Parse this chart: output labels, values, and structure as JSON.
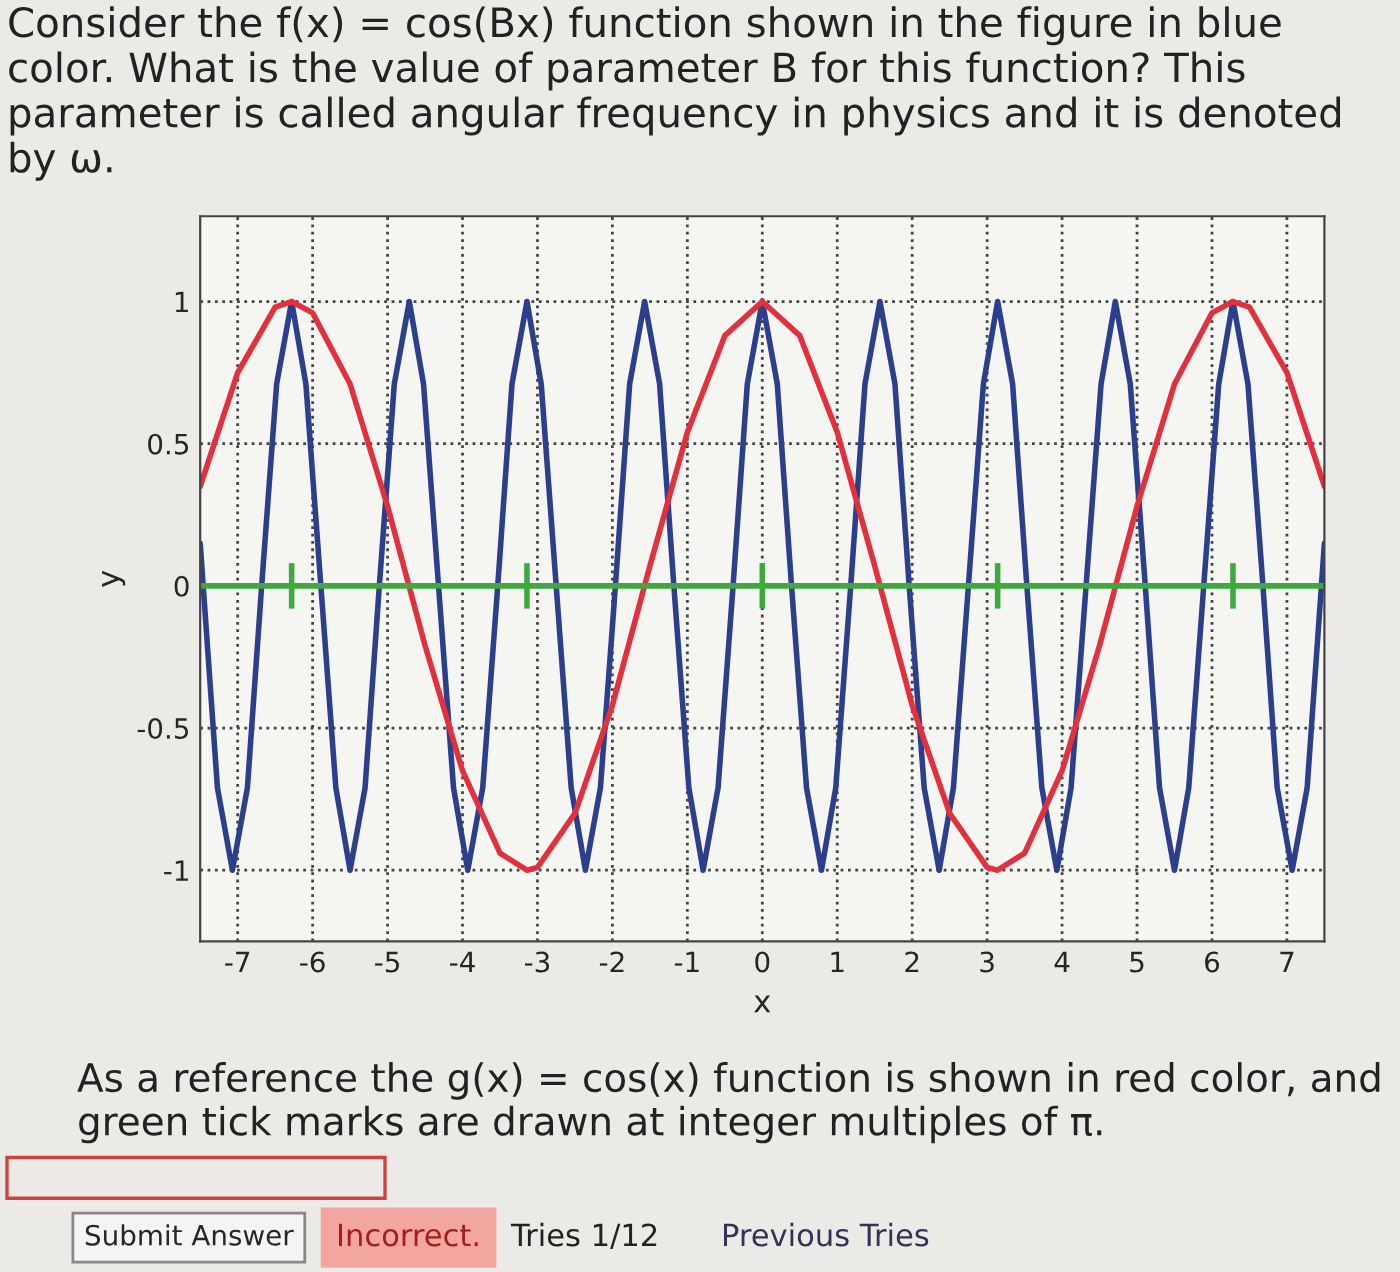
{
  "chart_data": {
    "type": "line",
    "title": "Consider the f(x) = cos(Bx) function shown in the figure in blue color. What is the value of parameter B for this function? This parameter is called angular frequency in physics and it is denoted by ω.",
    "xlabel": "x",
    "ylabel": "y",
    "xlim": [
      -7.5,
      7.5
    ],
    "ylim": [
      -1.25,
      1.3
    ],
    "xticks": [
      -7,
      -6,
      -5,
      -4,
      -3,
      -2,
      -1,
      0,
      1,
      2,
      3,
      4,
      5,
      6,
      7
    ],
    "yticks": [
      -1,
      -0.5,
      0,
      0.5,
      1
    ],
    "grid": true,
    "marker": "none",
    "line_style": "solid",
    "series": [
      {
        "color": "#2b3f8c",
        "x": [
          -7.5,
          -7.46,
          -7.27,
          -7.07,
          -6.87,
          -6.68,
          -6.48,
          -6.28,
          -6.09,
          -5.89,
          -5.69,
          -5.5,
          -5.3,
          -5.11,
          -4.91,
          -4.71,
          -4.52,
          -4.32,
          -4.12,
          -3.93,
          -3.73,
          -3.53,
          -3.34,
          -3.14,
          -2.95,
          -2.75,
          -2.55,
          -2.36,
          -2.16,
          -1.96,
          -1.77,
          -1.57,
          -1.37,
          -1.18,
          -0.98,
          -0.79,
          -0.59,
          -0.39,
          -0.2,
          0,
          0.2,
          0.39,
          0.59,
          0.79,
          0.98,
          1.18,
          1.37,
          1.57,
          1.77,
          1.96,
          2.16,
          2.36,
          2.55,
          2.75,
          2.95,
          3.14,
          3.34,
          3.53,
          3.73,
          3.93,
          4.12,
          4.32,
          4.52,
          4.71,
          4.91,
          5.11,
          5.3,
          5.5,
          5.69,
          5.89,
          6.09,
          6.28,
          6.48,
          6.68,
          6.87,
          7.07,
          7.27,
          7.46,
          7.5
        ],
        "values": [
          0.15,
          0,
          -0.71,
          -1,
          -0.71,
          0,
          0.71,
          1,
          0.71,
          0,
          -0.71,
          -1,
          -0.71,
          0,
          0.71,
          1,
          0.71,
          0,
          -0.71,
          -1,
          -0.71,
          0,
          0.71,
          1,
          0.71,
          0,
          -0.71,
          -1,
          -0.71,
          0,
          0.71,
          1,
          0.71,
          0,
          -0.71,
          -1,
          -0.71,
          0,
          0.71,
          1,
          0.71,
          0,
          -0.71,
          -1,
          -0.71,
          0,
          0.71,
          1,
          0.71,
          0,
          -0.71,
          -1,
          -0.71,
          0,
          0.71,
          1,
          0.71,
          0,
          -0.71,
          -1,
          -0.71,
          0,
          0.71,
          1,
          0.71,
          0,
          -0.71,
          -1,
          -0.71,
          0,
          0.71,
          1,
          0.71,
          0,
          -0.71,
          -1,
          -0.71,
          0,
          0.15
        ]
      },
      {
        "color": "#e2303c",
        "x": [
          -7.5,
          -7,
          -6.5,
          -6.28,
          -6,
          -5.5,
          -5,
          -4.5,
          -4,
          -3.5,
          -3.14,
          -3,
          -2.5,
          -2,
          -1.5,
          -1,
          -0.5,
          0,
          0.5,
          1,
          1.5,
          2,
          2.5,
          3,
          3.14,
          3.5,
          4,
          4.5,
          5,
          5.5,
          6,
          6.28,
          6.5,
          7,
          7.5
        ],
        "values": [
          0.35,
          0.75,
          0.98,
          1,
          0.96,
          0.71,
          0.28,
          -0.21,
          -0.65,
          -0.94,
          -1,
          -0.99,
          -0.8,
          -0.42,
          0.07,
          0.54,
          0.88,
          1,
          0.88,
          0.54,
          0.07,
          -0.42,
          -0.8,
          -0.99,
          -1,
          -0.94,
          -0.65,
          -0.21,
          0.28,
          0.71,
          0.96,
          1,
          0.98,
          0.75,
          0.35
        ]
      },
      {
        "color": "#3fa83f",
        "x": [
          -7.5,
          -6.28,
          -3.14,
          0,
          3.14,
          6.28,
          7.5
        ],
        "values": [
          0,
          0,
          0,
          0,
          0,
          0,
          0
        ],
        "errors": [
          null,
          0.08,
          0.08,
          0.08,
          0.08,
          0.08,
          null
        ]
      }
    ],
    "annotations": [
      "As a reference the g(x) = cos(x) function is shown in red color, and green tick marks are drawn at integer multiples of π.",
      "Submit Answer",
      "Incorrect.",
      "Tries 1/12",
      "Previous Tries"
    ]
  }
}
